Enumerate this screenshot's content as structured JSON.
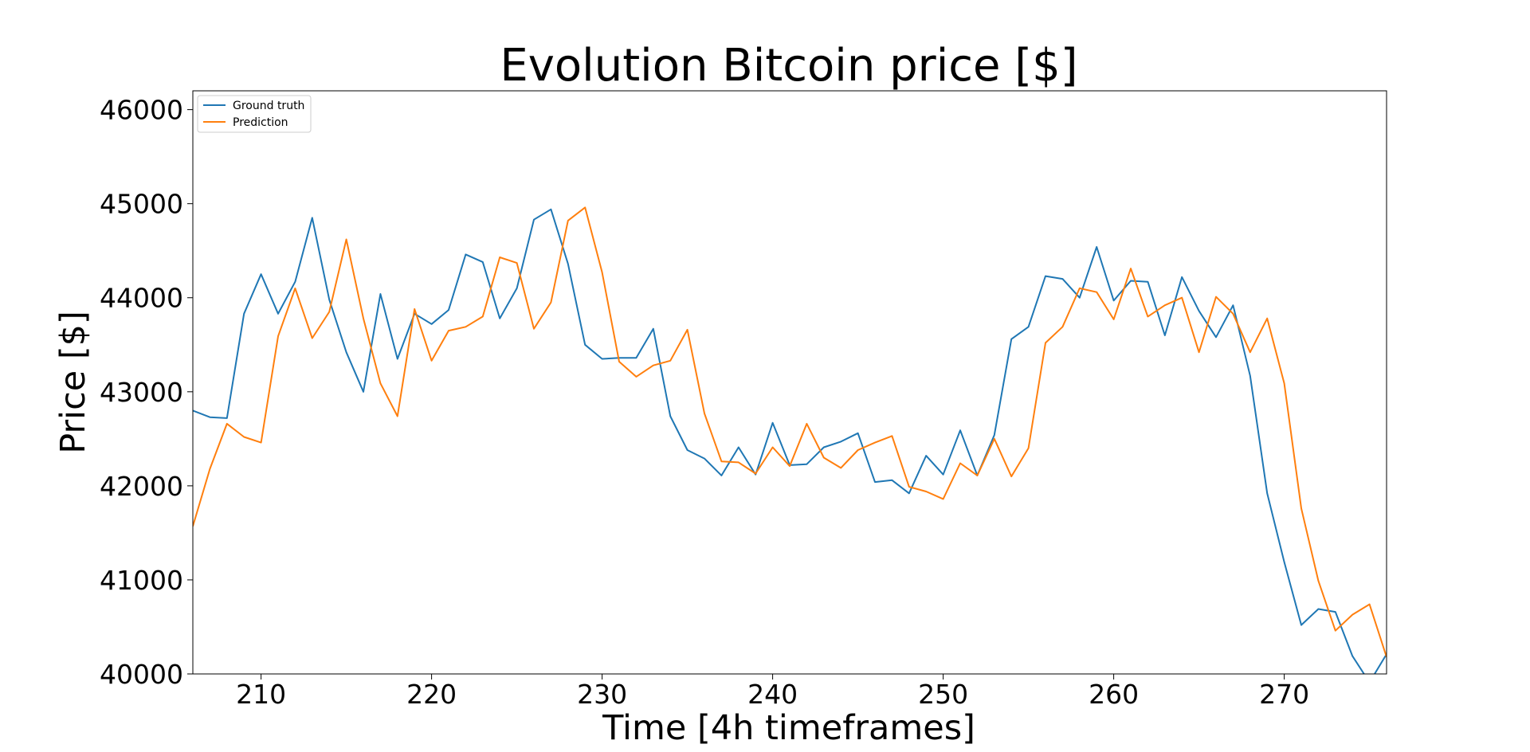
{
  "chart_data": {
    "type": "line",
    "title": "Evolution Bitcoin price [$]",
    "xlabel": "Time [4h timeframes]",
    "ylabel": "Price [$]",
    "xlim": [
      206,
      276
    ],
    "ylim": [
      40000,
      46200
    ],
    "xticks": [
      210,
      220,
      230,
      240,
      250,
      260,
      270
    ],
    "yticks": [
      40000,
      41000,
      42000,
      43000,
      44000,
      45000,
      46000
    ],
    "grid": false,
    "legend_position": "top-left",
    "series": [
      {
        "name": "Ground truth",
        "color": "#1f77b4",
        "x": [
          206,
          207,
          208,
          209,
          210,
          211,
          212,
          213,
          214,
          215,
          216,
          217,
          218,
          219,
          220,
          221,
          222,
          223,
          224,
          225,
          226,
          227,
          228,
          229,
          230,
          231,
          232,
          233,
          234,
          235,
          236,
          237,
          238,
          239,
          240,
          241,
          242,
          243,
          244,
          245,
          246,
          247,
          248,
          249,
          250,
          251,
          252,
          253,
          254,
          255,
          256,
          257,
          258,
          259,
          260,
          261,
          262,
          263,
          264,
          265,
          266,
          267,
          268,
          269,
          270,
          271,
          272,
          273,
          274,
          275,
          276
        ],
        "values": [
          42800,
          42730,
          42720,
          43830,
          44250,
          43830,
          44170,
          44850,
          43980,
          43420,
          43000,
          44040,
          43350,
          43830,
          43720,
          43870,
          44460,
          44380,
          43780,
          44100,
          44830,
          44940,
          44360,
          43500,
          43350,
          43360,
          43360,
          43670,
          42740,
          42380,
          42290,
          42110,
          42410,
          42120,
          42670,
          42220,
          42230,
          42410,
          42470,
          42560,
          42040,
          42060,
          41920,
          42320,
          42120,
          42590,
          42110,
          42540,
          43560,
          43690,
          44230,
          44200,
          44000,
          44540,
          43970,
          44180,
          44170,
          43600,
          44220,
          43860,
          43580,
          43920,
          43170,
          41920,
          41190,
          40520,
          40690,
          40660,
          40190,
          39910,
          40210
        ]
      },
      {
        "name": "Prediction",
        "color": "#ff7f0e",
        "x": [
          206,
          207,
          208,
          209,
          210,
          211,
          212,
          213,
          214,
          215,
          216,
          217,
          218,
          219,
          220,
          221,
          222,
          223,
          224,
          225,
          226,
          227,
          228,
          229,
          230,
          231,
          232,
          233,
          234,
          235,
          236,
          237,
          238,
          239,
          240,
          241,
          242,
          243,
          244,
          245,
          246,
          247,
          248,
          249,
          250,
          251,
          252,
          253,
          254,
          255,
          256,
          257,
          258,
          259,
          260,
          261,
          262,
          263,
          264,
          265,
          266,
          267,
          268,
          269,
          270,
          271,
          272,
          273,
          274,
          275,
          276
        ],
        "values": [
          41570,
          42180,
          42660,
          42520,
          42460,
          43590,
          44100,
          43570,
          43850,
          44620,
          43780,
          43090,
          42740,
          43880,
          43330,
          43650,
          43690,
          43800,
          44430,
          44370,
          43670,
          43950,
          44820,
          44960,
          44270,
          43320,
          43160,
          43280,
          43330,
          43660,
          42770,
          42260,
          42250,
          42130,
          42410,
          42210,
          42660,
          42300,
          42190,
          42380,
          42460,
          42530,
          41990,
          41940,
          41860,
          42240,
          42110,
          42500,
          42100,
          42400,
          43520,
          43690,
          44100,
          44060,
          43770,
          44310,
          43800,
          43920,
          44000,
          43420,
          44010,
          43830,
          43420,
          43780,
          43090,
          41760,
          40990,
          40460,
          40630,
          40740,
          40180
        ]
      }
    ]
  }
}
